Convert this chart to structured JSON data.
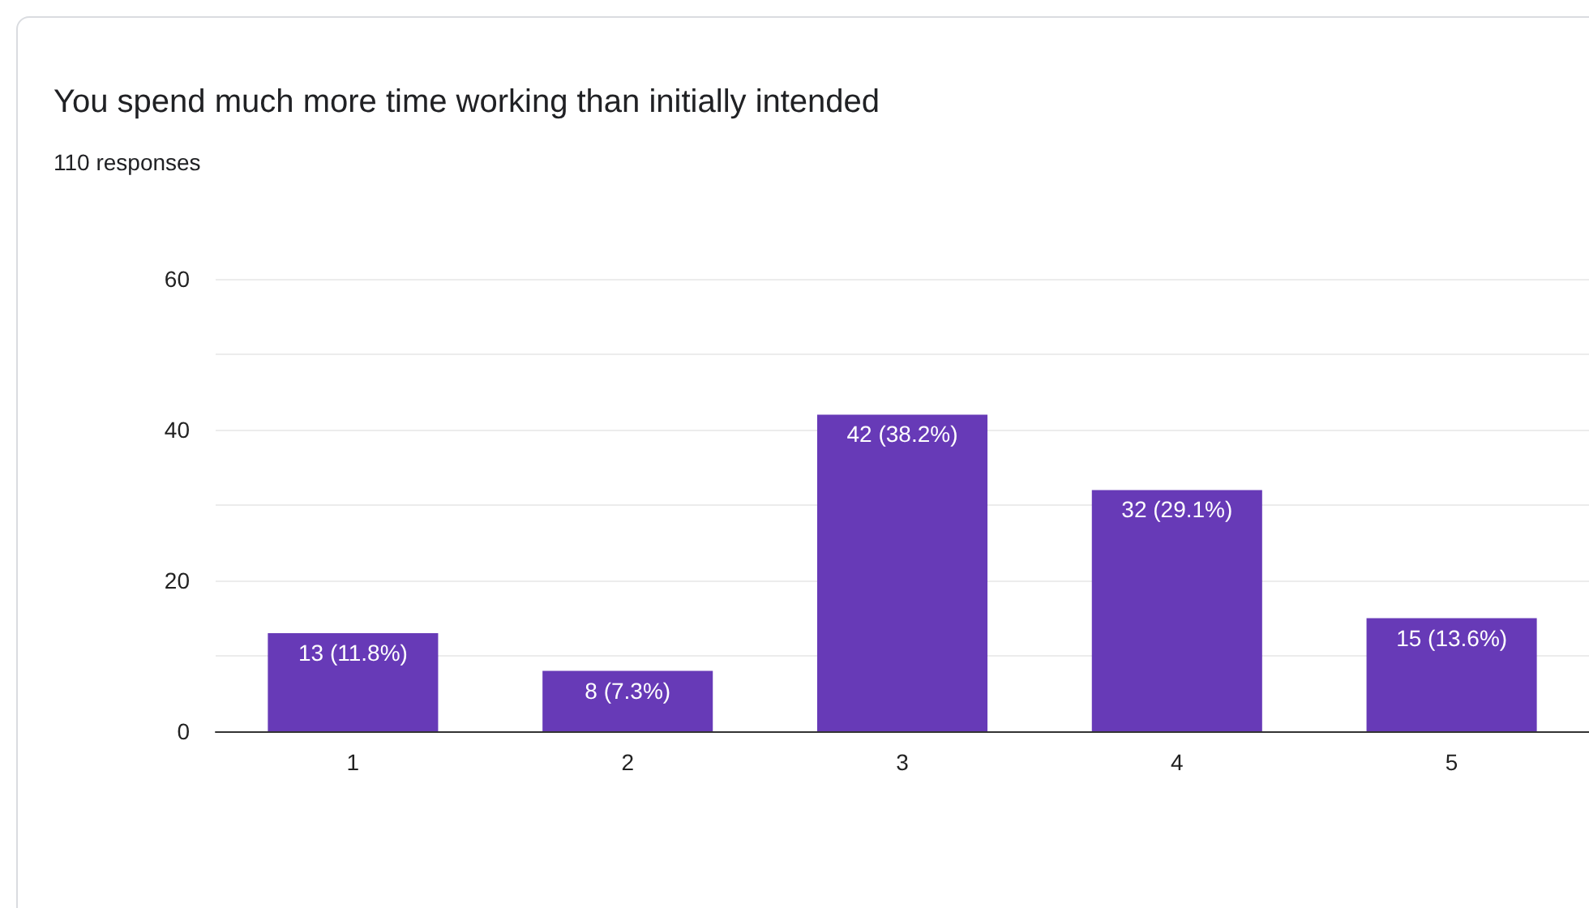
{
  "chart_data": {
    "type": "bar",
    "title": "You spend much more time working than initially intended",
    "subtitle": "110 responses",
    "categories": [
      "1",
      "2",
      "3",
      "4",
      "5"
    ],
    "values": [
      13,
      8,
      42,
      32,
      15
    ],
    "value_labels": [
      "13 (11.8%)",
      "8 (7.3%)",
      "42 (38.2%)",
      "32 (29.1%)",
      "15 (13.6%)"
    ],
    "color": "#673ab7",
    "ylim": [
      0,
      60
    ],
    "yticks": [
      0,
      {
        "value": 10,
        "label": null
      },
      20,
      {
        "value": 30,
        "label": null
      },
      40,
      {
        "value": 50,
        "label": null
      },
      60
    ],
    "grid": "y"
  }
}
